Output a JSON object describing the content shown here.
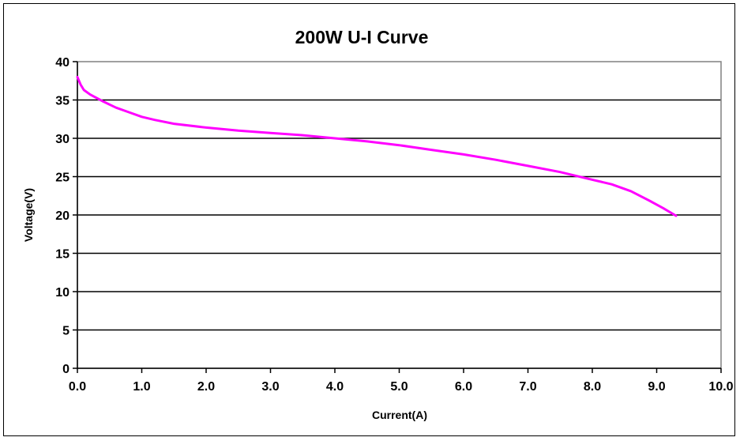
{
  "chart_data": {
    "type": "line",
    "title": "200W U-I Curve",
    "xlabel": "Current(A)",
    "ylabel": "Voltage(V)",
    "xlim": [
      0,
      10
    ],
    "ylim": [
      0,
      40
    ],
    "x_ticks": [
      "0.0",
      "1.0",
      "2.0",
      "3.0",
      "4.0",
      "5.0",
      "6.0",
      "7.0",
      "8.0",
      "9.0",
      "10.0"
    ],
    "y_ticks": [
      "0",
      "5",
      "10",
      "15",
      "20",
      "25",
      "30",
      "35",
      "40"
    ],
    "grid": {
      "horizontal": true,
      "vertical": false
    },
    "legend": "none",
    "series": [
      {
        "color": "#ff00ff",
        "x": [
          0.0,
          0.05,
          0.1,
          0.2,
          0.4,
          0.6,
          0.8,
          1.0,
          1.2,
          1.5,
          2.0,
          2.5,
          3.0,
          3.5,
          4.0,
          4.5,
          5.0,
          5.5,
          6.0,
          6.5,
          7.0,
          7.5,
          8.0,
          8.3,
          8.6,
          8.9,
          9.1,
          9.3
        ],
        "y": [
          38.0,
          37.0,
          36.3,
          35.7,
          34.8,
          34.0,
          33.4,
          32.8,
          32.4,
          31.9,
          31.4,
          31.0,
          30.7,
          30.4,
          30.0,
          29.6,
          29.1,
          28.5,
          27.9,
          27.2,
          26.4,
          25.6,
          24.6,
          24.0,
          23.1,
          21.8,
          20.9,
          19.9
        ]
      }
    ]
  }
}
